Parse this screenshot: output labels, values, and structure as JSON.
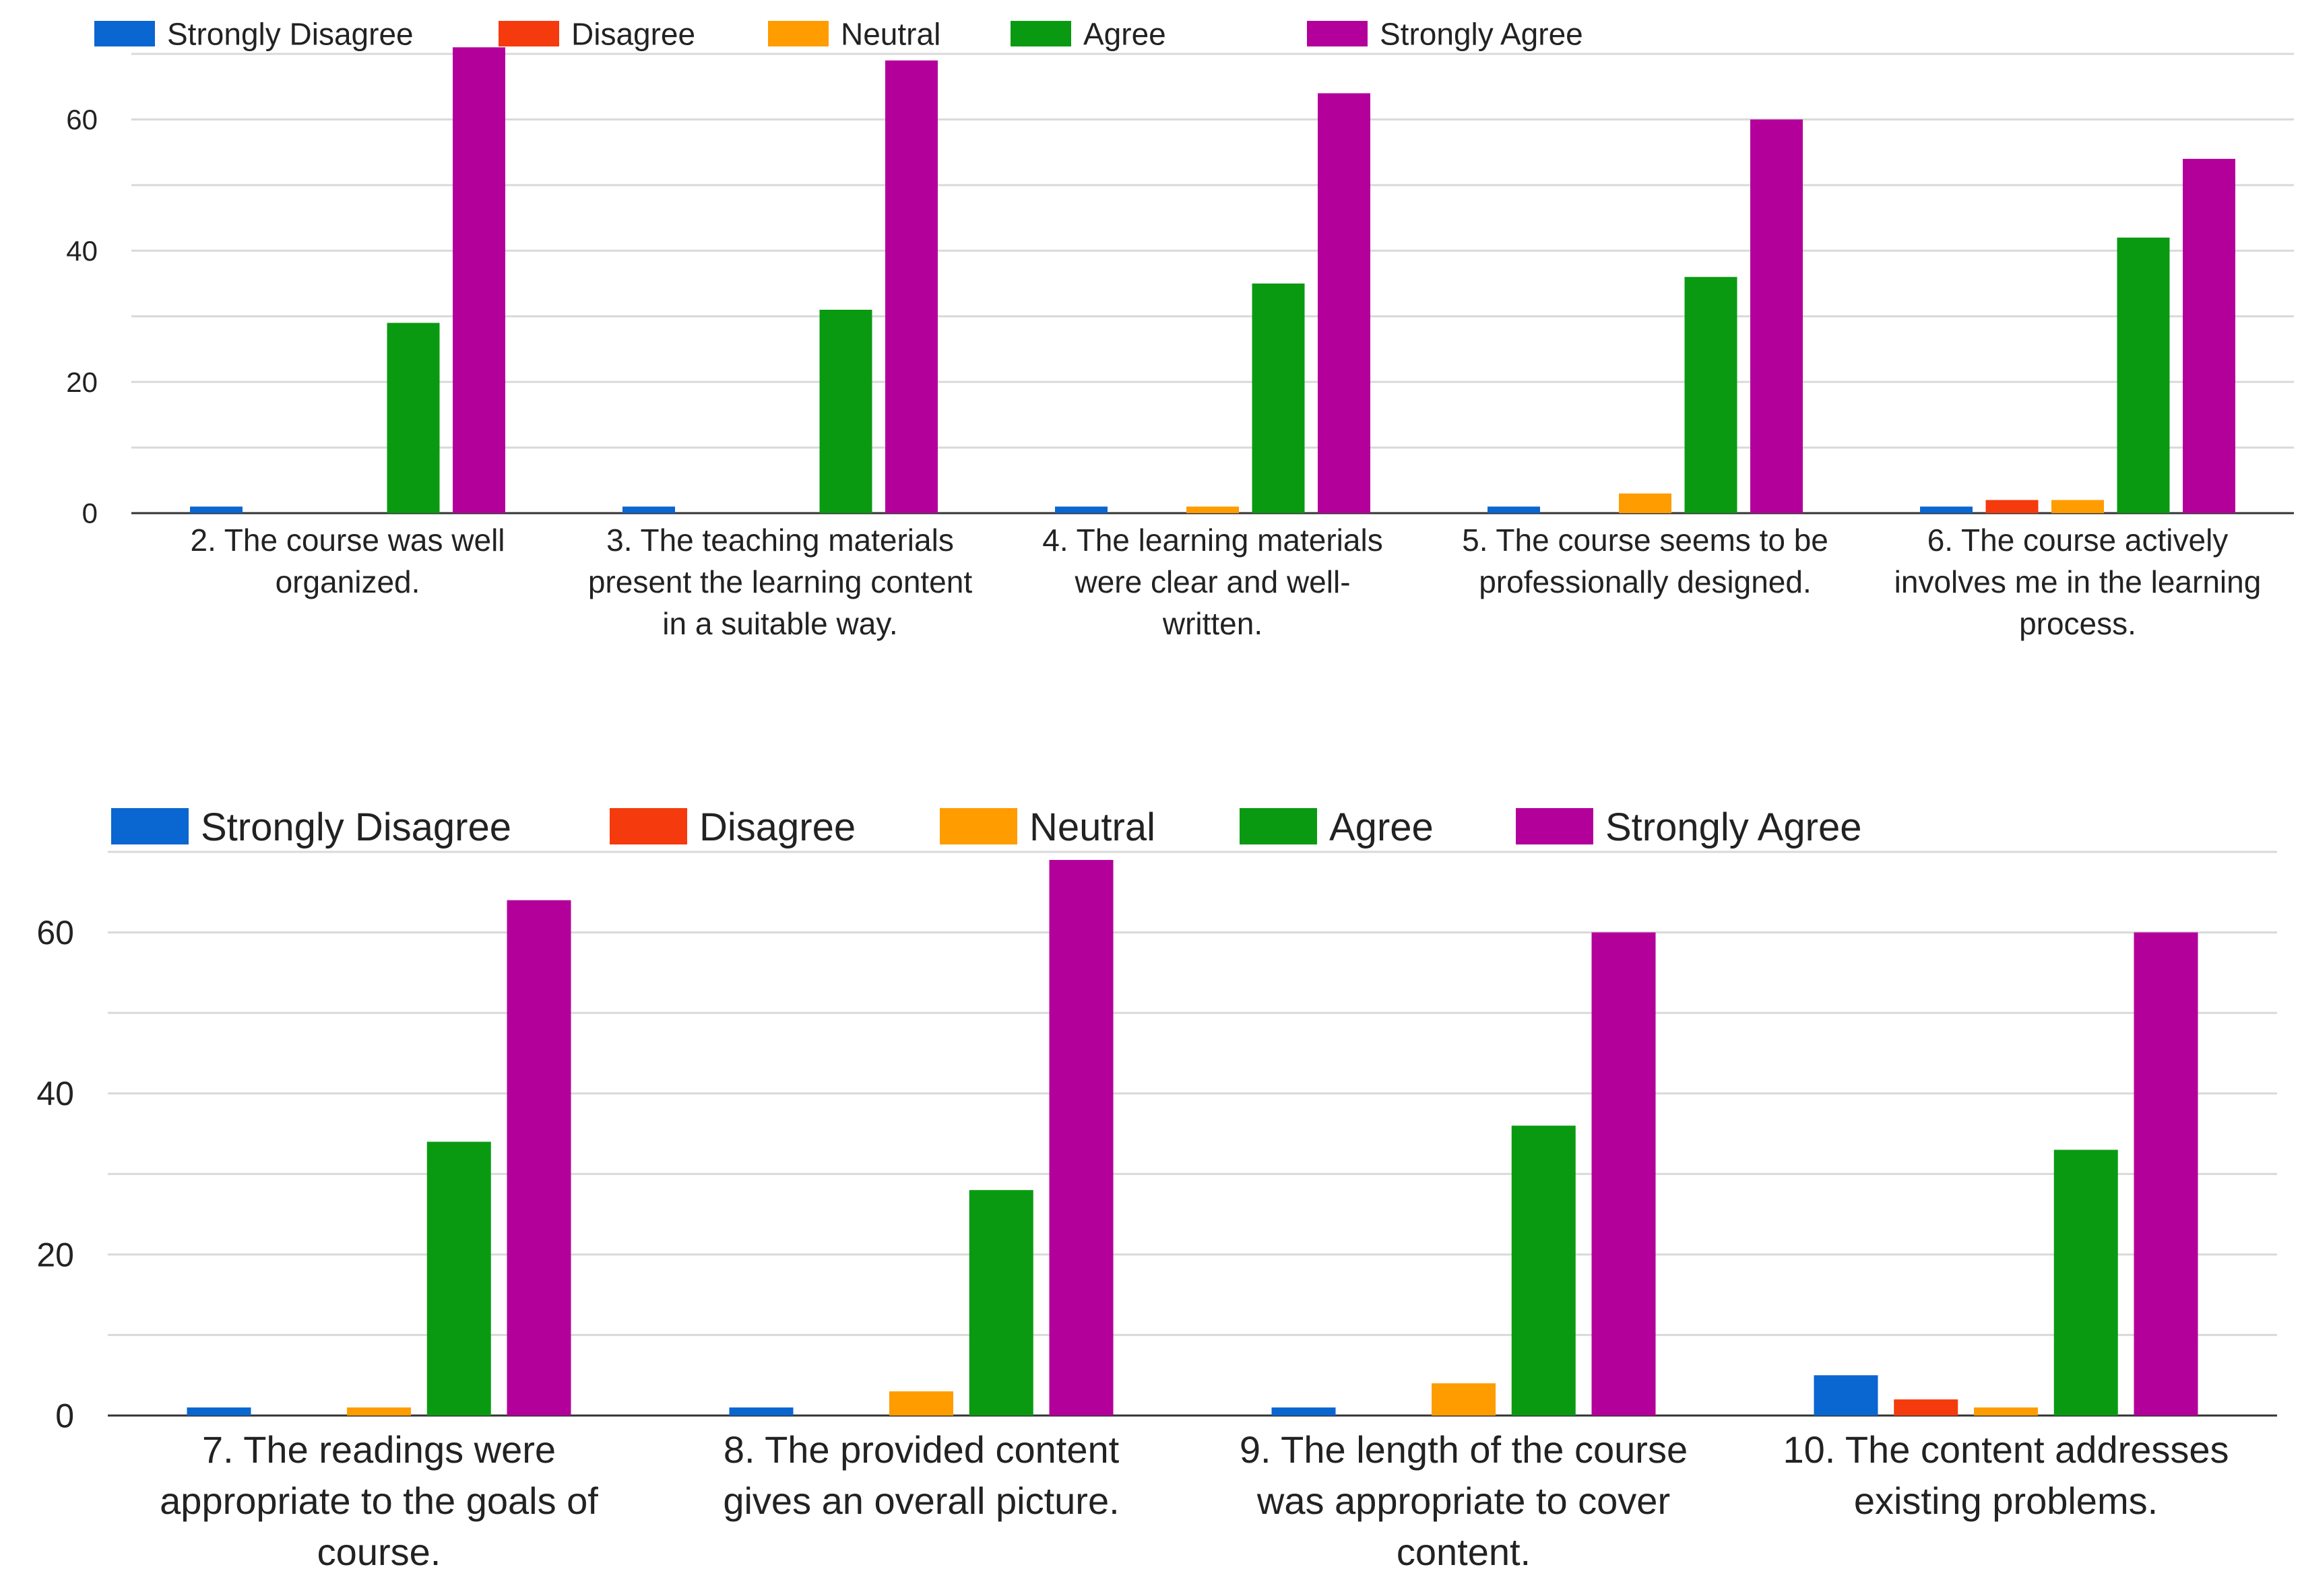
{
  "legend": [
    "Strongly Disagree",
    "Disagree",
    "Neutral",
    "Agree",
    "Strongly Agree"
  ],
  "colors": {
    "Strongly Disagree": "#0a66d0",
    "Disagree": "#f53a0d",
    "Neutral": "#ff9c00",
    "Agree": "#0a9a12",
    "Strongly Agree": "#b3009a",
    "grid": "#d9d9d9",
    "axis": "#333333"
  },
  "chart_data": [
    {
      "type": "bar",
      "title": "",
      "xlabel": "",
      "ylabel": "",
      "ylim": [
        0,
        70
      ],
      "yticks": [
        0,
        20,
        40,
        60
      ],
      "legend_position": "top-left",
      "categories": [
        [
          "2. The course was well",
          "organized."
        ],
        [
          "3. The teaching materials",
          "present the learning content",
          "in a suitable way."
        ],
        [
          "4. The learning materials",
          "were clear and well-",
          "written."
        ],
        [
          "5. The course seems to be",
          "professionally designed."
        ],
        [
          "6. The course actively",
          "involves me in the learning",
          "process."
        ]
      ],
      "series": [
        {
          "name": "Strongly Disagree",
          "values": [
            1,
            1,
            1,
            1,
            1
          ]
        },
        {
          "name": "Disagree",
          "values": [
            0,
            0,
            0,
            0,
            2
          ]
        },
        {
          "name": "Neutral",
          "values": [
            0,
            0,
            1,
            3,
            2
          ]
        },
        {
          "name": "Agree",
          "values": [
            29,
            31,
            35,
            36,
            42
          ]
        },
        {
          "name": "Strongly Agree",
          "values": [
            71,
            69,
            64,
            60,
            54
          ]
        }
      ]
    },
    {
      "type": "bar",
      "title": "",
      "xlabel": "",
      "ylabel": "",
      "ylim": [
        0,
        70
      ],
      "yticks": [
        0,
        20,
        40,
        60
      ],
      "legend_position": "top-left",
      "categories": [
        [
          "7. The readings were",
          "appropriate to the goals of",
          "course."
        ],
        [
          "8. The provided content",
          "gives an overall picture."
        ],
        [
          "9. The length of the course",
          "was appropriate to cover",
          "content."
        ],
        [
          "10. The content addresses",
          "existing problems."
        ]
      ],
      "series": [
        {
          "name": "Strongly Disagree",
          "values": [
            1,
            1,
            1,
            5
          ]
        },
        {
          "name": "Disagree",
          "values": [
            0,
            0,
            0,
            2
          ]
        },
        {
          "name": "Neutral",
          "values": [
            1,
            3,
            4,
            1
          ]
        },
        {
          "name": "Agree",
          "values": [
            34,
            28,
            36,
            33
          ]
        },
        {
          "name": "Strongly Agree",
          "values": [
            64,
            69,
            60,
            60
          ]
        }
      ]
    }
  ]
}
